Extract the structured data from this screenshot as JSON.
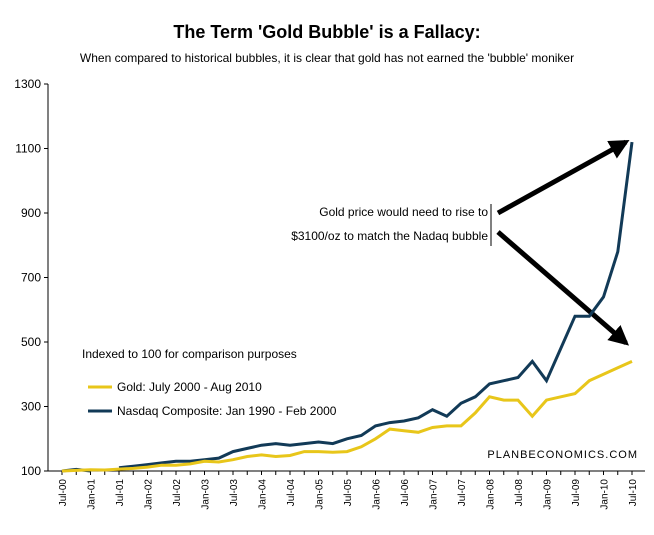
{
  "chart_data": {
    "type": "line",
    "title": "The Term 'Gold Bubble' is a Fallacy:",
    "subtitle": "When compared to historical bubbles, it is clear that gold has not earned the 'bubble' moniker",
    "annotations": [
      "Gold price would need to rise to",
      "$3100/oz to match the Nadaq bubble",
      "Indexed to 100 for comparison purposes",
      "PLANBECONOMICS.COM"
    ],
    "categories": [
      "Jul-00",
      null,
      "Jan-01",
      null,
      "Jul-01",
      null,
      "Jan-02",
      null,
      "Jul-02",
      null,
      "Jan-03",
      null,
      "Jul-03",
      null,
      "Jan-04",
      null,
      "Jul-04",
      null,
      "Jan-05",
      null,
      "Jul-05",
      null,
      "Jan-06",
      null,
      "Jul-06",
      null,
      "Jan-07",
      null,
      "Jul-07",
      null,
      "Jan-08",
      null,
      "Jul-08",
      null,
      "Jan-09",
      null,
      "Jul-09",
      null,
      "Jan-10",
      null,
      "Jul-10"
    ],
    "series": [
      {
        "name": "Gold: July 2000 - Aug 2010",
        "color": "#e8c61a",
        "values": [
          100,
          102,
          104,
          103,
          106,
          108,
          112,
          118,
          118,
          122,
          130,
          128,
          135,
          145,
          150,
          145,
          148,
          160,
          160,
          158,
          160,
          175,
          200,
          230,
          225,
          220,
          235,
          240,
          240,
          280,
          330,
          320,
          320,
          270,
          320,
          330,
          340,
          380,
          400,
          420,
          440
        ]
      },
      {
        "name": "Nasdaq Composite: Jan 1990 - Feb 2000",
        "color": "#123a57",
        "values": [
          100,
          105,
          100,
          null,
          110,
          115,
          120,
          125,
          130,
          130,
          135,
          140,
          160,
          170,
          180,
          185,
          180,
          185,
          190,
          185,
          200,
          210,
          240,
          250,
          255,
          265,
          290,
          270,
          310,
          330,
          370,
          380,
          390,
          440,
          380,
          480,
          580,
          580,
          640,
          780,
          1120
        ]
      }
    ],
    "ylim": [
      100,
      1300
    ],
    "yticks": [
      100,
      300,
      500,
      700,
      900,
      1100,
      1300
    ],
    "grid": false
  }
}
